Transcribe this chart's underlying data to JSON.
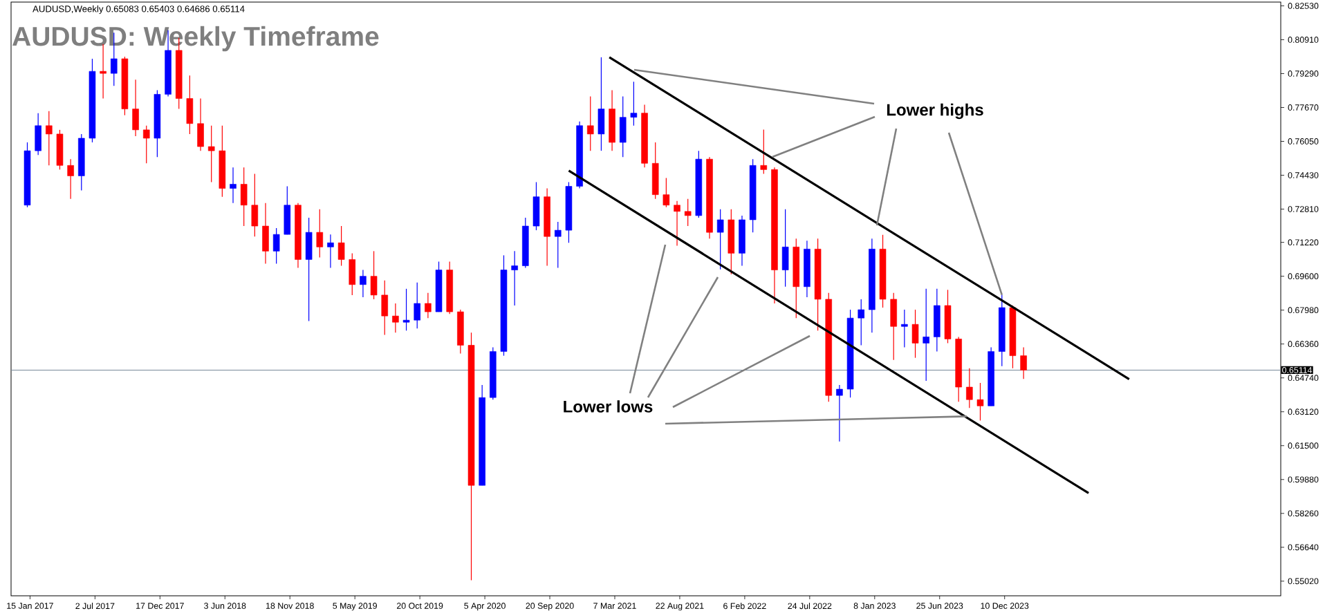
{
  "chart_data": {
    "type": "candlestick",
    "title": "AUDUSD: Weekly Timeframe",
    "subtitle": "AUDUSD,Weekly  0.65083 0.65403 0.64686 0.65114",
    "annotations": [
      {
        "text": "Lower highs",
        "x": "2023-12-03",
        "y": 0.6871
      },
      {
        "text": "Lower lows",
        "x": "2023-09-03",
        "y": 0.629
      }
    ],
    "x": [
      "2017-01-08",
      "2017-02-05",
      "2017-03-05",
      "2017-04-02",
      "2017-04-30",
      "2017-05-28",
      "2017-06-25",
      "2017-07-23",
      "2017-08-20",
      "2017-09-17",
      "2017-10-15",
      "2017-11-12",
      "2017-12-10",
      "2018-01-07",
      "2018-02-04",
      "2018-03-04",
      "2018-04-01",
      "2018-04-29",
      "2018-05-27",
      "2018-06-24",
      "2018-07-22",
      "2018-08-19",
      "2018-09-16",
      "2018-10-14",
      "2018-11-11",
      "2018-12-09",
      "2019-01-06",
      "2019-02-03",
      "2019-03-03",
      "2019-03-31",
      "2019-04-28",
      "2019-05-26",
      "2019-06-23",
      "2019-07-21",
      "2019-08-18",
      "2019-09-15",
      "2019-10-13",
      "2019-11-10",
      "2019-12-08",
      "2020-01-05",
      "2020-02-02",
      "2020-03-01",
      "2020-03-29",
      "2020-04-26",
      "2020-05-24",
      "2020-06-21",
      "2020-07-19",
      "2020-08-16",
      "2020-09-13",
      "2020-10-11",
      "2020-11-08",
      "2020-12-06",
      "2021-01-03",
      "2021-01-31",
      "2021-02-28",
      "2021-03-28",
      "2021-04-25",
      "2021-05-23",
      "2021-06-20",
      "2021-07-18",
      "2021-08-15",
      "2021-09-12",
      "2021-10-10",
      "2021-11-07",
      "2021-12-05",
      "2022-01-02",
      "2022-01-30",
      "2022-02-27",
      "2022-03-27",
      "2022-04-24",
      "2022-05-22",
      "2022-06-19",
      "2022-07-17",
      "2022-08-14",
      "2022-09-11",
      "2022-10-09",
      "2022-11-06",
      "2022-12-04",
      "2023-01-01",
      "2023-01-29",
      "2023-02-26",
      "2023-03-26",
      "2023-04-23",
      "2023-05-21",
      "2023-06-18",
      "2023-07-16",
      "2023-08-13",
      "2023-09-10",
      "2023-10-08",
      "2023-11-05",
      "2023-12-03",
      "2023-12-31",
      "2024-01-28"
    ],
    "ohlc": [
      [
        0.73,
        0.76,
        0.729,
        0.756
      ],
      [
        0.756,
        0.774,
        0.754,
        0.768
      ],
      [
        0.768,
        0.775,
        0.749,
        0.764
      ],
      [
        0.764,
        0.766,
        0.747,
        0.749
      ],
      [
        0.749,
        0.752,
        0.733,
        0.744
      ],
      [
        0.744,
        0.764,
        0.737,
        0.762
      ],
      [
        0.762,
        0.8,
        0.76,
        0.794
      ],
      [
        0.794,
        0.807,
        0.781,
        0.793
      ],
      [
        0.793,
        0.8125,
        0.787,
        0.8
      ],
      [
        0.8,
        0.801,
        0.773,
        0.776
      ],
      [
        0.776,
        0.79,
        0.763,
        0.766
      ],
      [
        0.766,
        0.768,
        0.75,
        0.762
      ],
      [
        0.762,
        0.785,
        0.753,
        0.783
      ],
      [
        0.783,
        0.8136,
        0.782,
        0.804
      ],
      [
        0.804,
        0.81,
        0.776,
        0.781
      ],
      [
        0.781,
        0.792,
        0.764,
        0.769
      ],
      [
        0.769,
        0.781,
        0.756,
        0.758
      ],
      [
        0.758,
        0.768,
        0.741,
        0.756
      ],
      [
        0.756,
        0.768,
        0.734,
        0.738
      ],
      [
        0.738,
        0.748,
        0.731,
        0.74
      ],
      [
        0.74,
        0.748,
        0.72,
        0.73
      ],
      [
        0.73,
        0.745,
        0.715,
        0.72
      ],
      [
        0.72,
        0.731,
        0.702,
        0.708
      ],
      [
        0.708,
        0.719,
        0.702,
        0.716
      ],
      [
        0.716,
        0.739,
        0.716,
        0.73
      ],
      [
        0.73,
        0.731,
        0.7,
        0.704
      ],
      [
        0.704,
        0.724,
        0.6746,
        0.717
      ],
      [
        0.717,
        0.728,
        0.705,
        0.71
      ],
      [
        0.71,
        0.716,
        0.7,
        0.712
      ],
      [
        0.712,
        0.72,
        0.701,
        0.704
      ],
      [
        0.704,
        0.707,
        0.687,
        0.692
      ],
      [
        0.692,
        0.699,
        0.686,
        0.696
      ],
      [
        0.696,
        0.708,
        0.685,
        0.687
      ],
      [
        0.687,
        0.694,
        0.668,
        0.677
      ],
      [
        0.677,
        0.683,
        0.669,
        0.674
      ],
      [
        0.674,
        0.69,
        0.67,
        0.675
      ],
      [
        0.675,
        0.693,
        0.671,
        0.683
      ],
      [
        0.683,
        0.688,
        0.676,
        0.679
      ],
      [
        0.679,
        0.703,
        0.679,
        0.699
      ],
      [
        0.699,
        0.703,
        0.678,
        0.679
      ],
      [
        0.679,
        0.68,
        0.659,
        0.663
      ],
      [
        0.663,
        0.669,
        0.5506,
        0.596
      ],
      [
        0.596,
        0.644,
        0.596,
        0.638
      ],
      [
        0.638,
        0.662,
        0.637,
        0.66
      ],
      [
        0.66,
        0.706,
        0.658,
        0.699
      ],
      [
        0.699,
        0.708,
        0.682,
        0.701
      ],
      [
        0.701,
        0.724,
        0.7,
        0.72
      ],
      [
        0.72,
        0.741,
        0.718,
        0.734
      ],
      [
        0.734,
        0.738,
        0.701,
        0.715
      ],
      [
        0.715,
        0.722,
        0.7,
        0.718
      ],
      [
        0.718,
        0.741,
        0.712,
        0.739
      ],
      [
        0.739,
        0.77,
        0.738,
        0.768
      ],
      [
        0.768,
        0.782,
        0.756,
        0.764
      ],
      [
        0.764,
        0.8007,
        0.756,
        0.776
      ],
      [
        0.776,
        0.785,
        0.756,
        0.76
      ],
      [
        0.76,
        0.782,
        0.753,
        0.772
      ],
      [
        0.772,
        0.789,
        0.768,
        0.774
      ],
      [
        0.774,
        0.778,
        0.748,
        0.75
      ],
      [
        0.75,
        0.76,
        0.733,
        0.735
      ],
      [
        0.735,
        0.743,
        0.729,
        0.73
      ],
      [
        0.73,
        0.732,
        0.7106,
        0.727
      ],
      [
        0.727,
        0.733,
        0.72,
        0.725
      ],
      [
        0.725,
        0.756,
        0.724,
        0.752
      ],
      [
        0.752,
        0.753,
        0.714,
        0.717
      ],
      [
        0.717,
        0.728,
        0.6993,
        0.723
      ],
      [
        0.723,
        0.728,
        0.697,
        0.707
      ],
      [
        0.707,
        0.725,
        0.701,
        0.723
      ],
      [
        0.723,
        0.752,
        0.717,
        0.749
      ],
      [
        0.749,
        0.7661,
        0.745,
        0.747
      ],
      [
        0.747,
        0.748,
        0.683,
        0.699
      ],
      [
        0.699,
        0.728,
        0.691,
        0.71
      ],
      [
        0.71,
        0.714,
        0.676,
        0.691
      ],
      [
        0.691,
        0.713,
        0.686,
        0.709
      ],
      [
        0.709,
        0.714,
        0.67,
        0.685
      ],
      [
        0.685,
        0.688,
        0.636,
        0.639
      ],
      [
        0.639,
        0.644,
        0.617,
        0.642
      ],
      [
        0.642,
        0.68,
        0.638,
        0.676
      ],
      [
        0.676,
        0.685,
        0.663,
        0.68
      ],
      [
        0.68,
        0.714,
        0.669,
        0.709
      ],
      [
        0.709,
        0.7158,
        0.681,
        0.685
      ],
      [
        0.685,
        0.688,
        0.656,
        0.672
      ],
      [
        0.672,
        0.68,
        0.662,
        0.673
      ],
      [
        0.673,
        0.68,
        0.657,
        0.664
      ],
      [
        0.664,
        0.69,
        0.646,
        0.667
      ],
      [
        0.667,
        0.69,
        0.66,
        0.682
      ],
      [
        0.682,
        0.6895,
        0.664,
        0.666
      ],
      [
        0.666,
        0.667,
        0.636,
        0.643
      ],
      [
        0.643,
        0.652,
        0.633,
        0.637
      ],
      [
        0.637,
        0.645,
        0.627,
        0.634
      ],
      [
        0.634,
        0.662,
        0.634,
        0.66
      ],
      [
        0.66,
        0.6871,
        0.653,
        0.681
      ],
      [
        0.681,
        0.682,
        0.652,
        0.658
      ],
      [
        0.658,
        0.662,
        0.6469,
        0.6511
      ]
    ],
    "colors": [
      "#0000ff",
      "#0000ff",
      "#ff0000",
      "#ff0000",
      "#ff0000",
      "#0000ff",
      "#0000ff",
      "#ff0000",
      "#0000ff",
      "#ff0000",
      "#ff0000",
      "#ff0000",
      "#0000ff",
      "#0000ff",
      "#ff0000",
      "#ff0000",
      "#ff0000",
      "#ff0000",
      "#ff0000",
      "#0000ff",
      "#ff0000",
      "#ff0000",
      "#ff0000",
      "#0000ff",
      "#0000ff",
      "#ff0000",
      "#0000ff",
      "#ff0000",
      "#0000ff",
      "#ff0000",
      "#ff0000",
      "#0000ff",
      "#ff0000",
      "#ff0000",
      "#ff0000",
      "#0000ff",
      "#0000ff",
      "#ff0000",
      "#0000ff",
      "#ff0000",
      "#ff0000",
      "#ff0000",
      "#0000ff",
      "#0000ff",
      "#0000ff",
      "#0000ff",
      "#0000ff",
      "#0000ff",
      "#ff0000",
      "#0000ff",
      "#0000ff",
      "#0000ff",
      "#ff0000",
      "#0000ff",
      "#ff0000",
      "#0000ff",
      "#0000ff",
      "#ff0000",
      "#ff0000",
      "#ff0000",
      "#ff0000",
      "#ff0000",
      "#0000ff",
      "#ff0000",
      "#0000ff",
      "#ff0000",
      "#0000ff",
      "#0000ff",
      "#ff0000",
      "#ff0000",
      "#0000ff",
      "#ff0000",
      "#0000ff",
      "#ff0000",
      "#ff0000",
      "#0000ff",
      "#0000ff",
      "#0000ff",
      "#0000ff",
      "#ff0000",
      "#ff0000",
      "#0000ff",
      "#ff0000",
      "#0000ff",
      "#0000ff",
      "#ff0000",
      "#ff0000",
      "#ff0000",
      "#ff0000",
      "#0000ff",
      "#0000ff",
      "#ff0000",
      "#ff0000"
    ],
    "series": [
      {
        "type": "line",
        "color": "#000000",
        "x": [
          "2021-02-21",
          "2024-10-27"
        ],
        "values": [
          0.8007,
          0.6468
        ]
      },
      {
        "type": "line",
        "color": "#000000",
        "x": [
          "2020-11-08",
          "2024-07-14"
        ],
        "values": [
          0.7465,
          0.5923
        ]
      }
    ],
    "ref_lines": [
      {
        "axis": "y",
        "value": 0.65114,
        "label": "0.65114",
        "color": "#778899",
        "line_style": "solid"
      }
    ],
    "xlim": [
      "2016-11-27",
      "2025-11-23"
    ],
    "ylim": [
      0.5432,
      0.8271
    ],
    "xticks": [
      {
        "value": "2017-01-15",
        "label": "15 Jan 2017"
      },
      {
        "value": "2017-07-02",
        "label": "2 Jul 2017"
      },
      {
        "value": "2017-12-17",
        "label": "17 Dec 2017"
      },
      {
        "value": "2018-06-03",
        "label": "3 Jun 2018"
      },
      {
        "value": "2018-11-18",
        "label": "18 Nov 2018"
      },
      {
        "value": "2019-05-05",
        "label": "5 May 2019"
      },
      {
        "value": "2019-10-20",
        "label": "20 Oct 2019"
      },
      {
        "value": "2020-04-05",
        "label": "5 Apr 2020"
      },
      {
        "value": "2020-09-20",
        "label": "20 Sep 2020"
      },
      {
        "value": "2021-03-07",
        "label": "7 Mar 2021"
      },
      {
        "value": "2021-08-22",
        "label": "22 Aug 2021"
      },
      {
        "value": "2022-02-06",
        "label": "6 Feb 2022"
      },
      {
        "value": "2022-07-24",
        "label": "24 Jul 2022"
      },
      {
        "value": "2023-01-08",
        "label": "8 Jan 2023"
      },
      {
        "value": "2023-06-25",
        "label": "25 Jun 2023"
      },
      {
        "value": "2023-12-10",
        "label": "10 Dec 2023"
      }
    ],
    "yticks": [
      {
        "value": 0.5502,
        "label": "0.55020"
      },
      {
        "value": 0.5664,
        "label": "0.56640"
      },
      {
        "value": 0.5826,
        "label": "0.58260"
      },
      {
        "value": 0.5988,
        "label": "0.59880"
      },
      {
        "value": 0.615,
        "label": "0.61500"
      },
      {
        "value": 0.6312,
        "label": "0.63120"
      },
      {
        "value": 0.6474,
        "label": "0.64740"
      },
      {
        "value": 0.6636,
        "label": "0.66360"
      },
      {
        "value": 0.6798,
        "label": "0.67980"
      },
      {
        "value": 0.696,
        "label": "0.69600"
      },
      {
        "value": 0.7122,
        "label": "0.71220"
      },
      {
        "value": 0.7281,
        "label": "0.72810"
      },
      {
        "value": 0.7443,
        "label": "0.74430"
      },
      {
        "value": 0.7605,
        "label": "0.76050"
      },
      {
        "value": 0.7767,
        "label": "0.77670"
      },
      {
        "value": 0.7929,
        "label": "0.79290"
      },
      {
        "value": 0.8091,
        "label": "0.80910"
      },
      {
        "value": 0.8253,
        "label": "0.82530"
      }
    ]
  }
}
